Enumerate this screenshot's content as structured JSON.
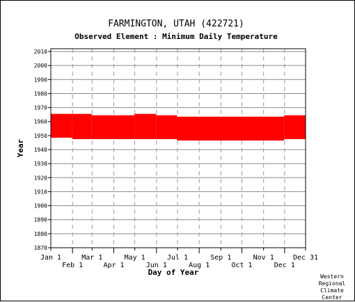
{
  "chart_data": {
    "type": "scatter",
    "title": "FARMINGTON, UTAH   (422721)",
    "subtitle": "Observed Element : Minimum Daily Temperature",
    "xlabel": "Day of Year",
    "ylabel": "Year",
    "xlim": [
      1,
      365
    ],
    "ylim": [
      1870,
      2012
    ],
    "grid": true,
    "y_ticks": [
      1870,
      1880,
      1890,
      1900,
      1910,
      1920,
      1930,
      1940,
      1950,
      1960,
      1970,
      1980,
      1990,
      2000,
      2010
    ],
    "x_ticks": [
      {
        "label": "Jan 1",
        "day": 1,
        "row": 0
      },
      {
        "label": "Feb 1",
        "day": 32,
        "row": 1
      },
      {
        "label": "Mar 1",
        "day": 60,
        "row": 0
      },
      {
        "label": "Apr 1",
        "day": 91,
        "row": 1
      },
      {
        "label": "May 1",
        "day": 121,
        "row": 0
      },
      {
        "label": "Jun 1",
        "day": 152,
        "row": 1
      },
      {
        "label": "Jul 1",
        "day": 182,
        "row": 0
      },
      {
        "label": "Aug 1",
        "day": 213,
        "row": 1
      },
      {
        "label": "Sep 1",
        "day": 244,
        "row": 0
      },
      {
        "label": "Oct 1",
        "day": 274,
        "row": 1
      },
      {
        "label": "Nov 1",
        "day": 305,
        "row": 0
      },
      {
        "label": "Dec 1",
        "day": 335,
        "row": 1
      },
      {
        "label": "Dec 31",
        "day": 365,
        "row": 0
      }
    ],
    "series": [
      {
        "color": "#ff0000",
        "ranges": [
          {
            "day_start": 1,
            "day_end": 31,
            "year_start": 1949,
            "year_end": 1965
          },
          {
            "day_start": 32,
            "day_end": 59,
            "year_start": 1948,
            "year_end": 1965
          },
          {
            "day_start": 60,
            "day_end": 120,
            "year_start": 1948,
            "year_end": 1964
          },
          {
            "day_start": 121,
            "day_end": 151,
            "year_start": 1948,
            "year_end": 1965
          },
          {
            "day_start": 152,
            "day_end": 181,
            "year_start": 1948,
            "year_end": 1964
          },
          {
            "day_start": 182,
            "day_end": 334,
            "year_start": 1947,
            "year_end": 1963
          },
          {
            "day_start": 335,
            "day_end": 365,
            "year_start": 1948,
            "year_end": 1964
          }
        ]
      }
    ]
  },
  "credit": [
    "Western",
    "Regional",
    "Climate",
    "Center"
  ]
}
